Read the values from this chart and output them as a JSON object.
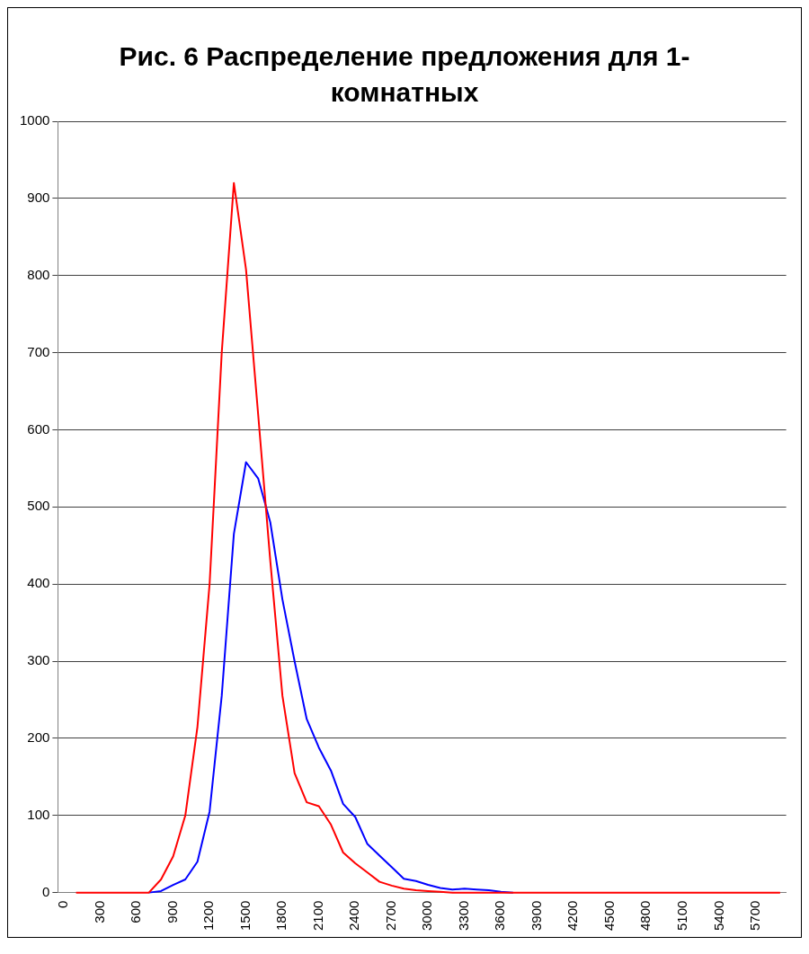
{
  "chart_data": {
    "type": "line",
    "title": "Рис. 6 Распределение предложения для 1-комнатных",
    "categories": [
      "0",
      null,
      null,
      "300",
      null,
      null,
      "600",
      null,
      null,
      "900",
      null,
      null,
      "1200",
      null,
      null,
      "1500",
      null,
      null,
      "1800",
      null,
      null,
      "2100",
      null,
      null,
      "2400",
      null,
      null,
      "2700",
      null,
      null,
      "3000",
      null,
      null,
      "3300",
      null,
      null,
      "3600",
      null,
      null,
      "3900",
      null,
      null,
      "4200",
      null,
      null,
      "4500",
      null,
      null,
      "4800",
      null,
      null,
      "5100",
      null,
      null,
      "5400",
      null,
      null,
      "5700",
      null,
      null
    ],
    "series": [
      {
        "color": "#ff0000",
        "values": [
          null,
          0,
          0,
          0,
          0,
          0,
          0,
          0,
          17,
          47,
          100,
          215,
          400,
          700,
          920,
          808,
          620,
          430,
          255,
          155,
          117,
          112,
          88,
          52,
          38,
          26,
          14,
          9,
          5,
          3,
          2,
          1,
          0,
          0,
          0,
          0,
          0,
          0,
          0,
          0,
          0,
          0,
          0,
          0,
          0,
          0,
          0,
          0,
          0,
          0,
          0,
          0,
          0,
          0,
          0,
          0,
          0,
          0,
          0,
          0
        ]
      },
      {
        "color": "#0000ff",
        "values": [
          null,
          null,
          null,
          null,
          null,
          null,
          null,
          0,
          2,
          10,
          17,
          40,
          105,
          255,
          465,
          558,
          537,
          480,
          380,
          300,
          225,
          188,
          158,
          115,
          98,
          63,
          48,
          33,
          18,
          15,
          10,
          6,
          4,
          5,
          4,
          3,
          1,
          0,
          null,
          null,
          null,
          null,
          null,
          null,
          null,
          null,
          null,
          null,
          null,
          null,
          null,
          null,
          null,
          null,
          null,
          null,
          null,
          null,
          null,
          null
        ]
      }
    ],
    "ylim": [
      0,
      1000
    ],
    "yticks": [
      0,
      100,
      200,
      300,
      400,
      500,
      600,
      700,
      800,
      900,
      1000
    ],
    "grid": "y",
    "legend": false,
    "marker": "none",
    "line_style": "solid"
  }
}
